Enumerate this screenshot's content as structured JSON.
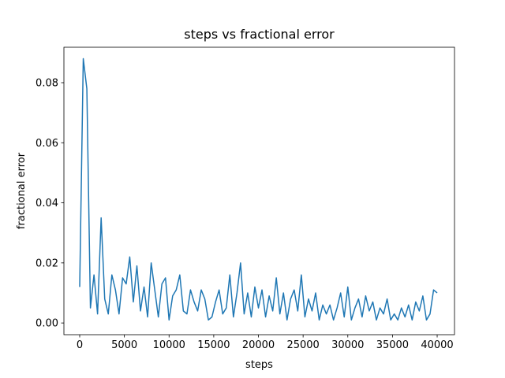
{
  "chart_data": {
    "type": "line",
    "title": "steps vs fractional error",
    "x_label": "steps",
    "y_label": "fractional error",
    "x": [
      0,
      400,
      800,
      1200,
      1600,
      2000,
      2400,
      2800,
      3200,
      3600,
      4000,
      4400,
      4800,
      5200,
      5600,
      6000,
      6400,
      6800,
      7200,
      7600,
      8000,
      8400,
      8800,
      9200,
      9600,
      10000,
      10400,
      10800,
      11200,
      11600,
      12000,
      12400,
      12800,
      13200,
      13600,
      14000,
      14400,
      14800,
      15200,
      15600,
      16000,
      16400,
      16800,
      17200,
      17600,
      18000,
      18400,
      18800,
      19200,
      19600,
      20000,
      20400,
      20800,
      21200,
      21600,
      22000,
      22400,
      22800,
      23200,
      23600,
      24000,
      24400,
      24800,
      25200,
      25600,
      26000,
      26400,
      26800,
      27200,
      27600,
      28000,
      28400,
      28800,
      29200,
      29600,
      30000,
      30400,
      30800,
      31200,
      31600,
      32000,
      32400,
      32800,
      33200,
      33600,
      34000,
      34400,
      34800,
      35200,
      35600,
      36000,
      36400,
      36800,
      37200,
      37600,
      38000,
      38400,
      38800,
      39200,
      39600,
      40000
    ],
    "series": [
      {
        "name": "fractional error",
        "color": "#1f77b4",
        "values": [
          0.012,
          0.088,
          0.078,
          0.005,
          0.016,
          0.003,
          0.035,
          0.008,
          0.003,
          0.016,
          0.011,
          0.003,
          0.015,
          0.013,
          0.022,
          0.007,
          0.019,
          0.004,
          0.012,
          0.002,
          0.02,
          0.011,
          0.002,
          0.013,
          0.015,
          0.001,
          0.009,
          0.011,
          0.016,
          0.004,
          0.003,
          0.011,
          0.007,
          0.004,
          0.011,
          0.008,
          0.001,
          0.002,
          0.007,
          0.011,
          0.003,
          0.005,
          0.016,
          0.002,
          0.01,
          0.02,
          0.003,
          0.01,
          0.002,
          0.012,
          0.005,
          0.011,
          0.002,
          0.009,
          0.004,
          0.015,
          0.003,
          0.01,
          0.001,
          0.008,
          0.011,
          0.004,
          0.016,
          0.002,
          0.008,
          0.004,
          0.01,
          0.001,
          0.006,
          0.003,
          0.006,
          0.001,
          0.005,
          0.01,
          0.002,
          0.012,
          0.001,
          0.005,
          0.008,
          0.002,
          0.009,
          0.004,
          0.007,
          0.001,
          0.005,
          0.003,
          0.008,
          0.001,
          0.003,
          0.001,
          0.005,
          0.002,
          0.006,
          0.001,
          0.007,
          0.004,
          0.009,
          0.001,
          0.003,
          0.011,
          0.01
        ]
      }
    ],
    "xlim": [
      -1766,
      41940
    ],
    "ylim": [
      -0.0039,
      0.0918
    ],
    "xticks": [
      0,
      5000,
      10000,
      15000,
      20000,
      25000,
      30000,
      35000,
      40000
    ],
    "yticks": [
      {
        "value": 0,
        "label": "0.00"
      },
      {
        "value": 0.02,
        "label": "0.02"
      },
      {
        "value": 0.04,
        "label": "0.04"
      },
      {
        "value": 0.06,
        "label": "0.06"
      },
      {
        "value": 0.08,
        "label": "0.08"
      }
    ]
  }
}
